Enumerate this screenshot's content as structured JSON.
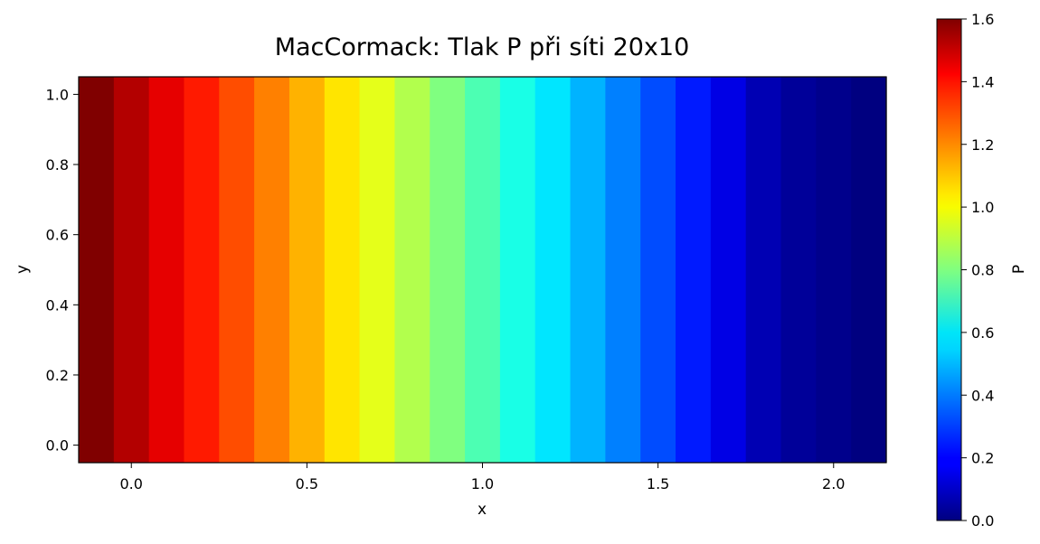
{
  "chart_data": {
    "type": "heatmap",
    "title": "MacCormack: Tlak P při síti 20x10",
    "xlabel": "x",
    "ylabel": "y",
    "xlim": [
      -0.15,
      2.15
    ],
    "ylim": [
      -0.05,
      1.05
    ],
    "x_ticks": [
      0.0,
      0.5,
      1.0,
      1.5,
      2.0
    ],
    "x_tick_labels": [
      "0.0",
      "0.5",
      "1.0",
      "1.5",
      "2.0"
    ],
    "y_ticks": [
      0.0,
      0.2,
      0.4,
      0.6,
      0.8,
      1.0
    ],
    "y_tick_labels": [
      "0.0",
      "0.2",
      "0.4",
      "0.6",
      "0.8",
      "1.0"
    ],
    "grid": false,
    "colormap": "jet",
    "cell_x_edges": [
      -0.15,
      -0.05,
      0.05,
      0.15,
      0.25,
      0.35,
      0.45,
      0.55,
      0.65,
      0.75,
      0.85,
      0.95,
      1.05,
      1.15,
      1.25,
      1.35,
      1.45,
      1.55,
      1.65,
      1.75,
      1.85,
      1.95,
      2.05,
      2.15
    ],
    "cell_y_edges": [
      -0.05,
      1.05
    ],
    "values": [
      1.6,
      1.52,
      1.44,
      1.36,
      1.28,
      1.2,
      1.12,
      1.04,
      0.96,
      0.88,
      0.8,
      0.72,
      0.64,
      0.56,
      0.48,
      0.4,
      0.32,
      0.24,
      0.16,
      0.08,
      0.04,
      0.02,
      0.0
    ],
    "colorbar": {
      "label": "P",
      "range": [
        0.0,
        1.6
      ],
      "ticks": [
        0.0,
        0.2,
        0.4,
        0.6,
        0.8,
        1.0,
        1.2,
        1.4,
        1.6
      ],
      "tick_labels": [
        "0.0",
        "0.2",
        "0.4",
        "0.6",
        "0.8",
        "1.0",
        "1.2",
        "1.4",
        "1.6"
      ]
    }
  }
}
